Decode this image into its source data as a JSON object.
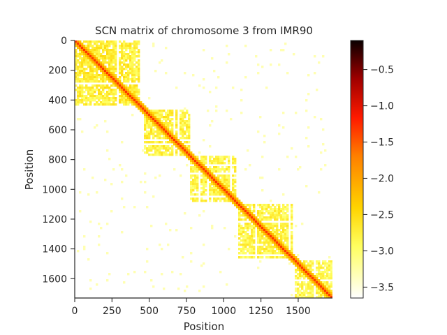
{
  "chart_data": {
    "type": "heatmap",
    "title": "SCN matrix of chromosome 3 from IMR90",
    "xlabel": "Position",
    "ylabel": "Position",
    "xlim": [
      0,
      1730
    ],
    "ylim": [
      1730,
      0
    ],
    "xticks": [
      {
        "value": 0,
        "label": "0"
      },
      {
        "value": 250,
        "label": "250"
      },
      {
        "value": 500,
        "label": "500"
      },
      {
        "value": 750,
        "label": "750"
      },
      {
        "value": 1000,
        "label": "1000"
      },
      {
        "value": 1250,
        "label": "1250"
      },
      {
        "value": 1500,
        "label": "1500"
      }
    ],
    "yticks": [
      {
        "value": 0,
        "label": "0"
      },
      {
        "value": 200,
        "label": "200"
      },
      {
        "value": 400,
        "label": "400"
      },
      {
        "value": 600,
        "label": "600"
      },
      {
        "value": 800,
        "label": "800"
      },
      {
        "value": 1000,
        "label": "1000"
      },
      {
        "value": 1200,
        "label": "1200"
      },
      {
        "value": 1400,
        "label": "1400"
      },
      {
        "value": 1600,
        "label": "1600"
      }
    ],
    "colorbar": {
      "colormap": "hot_r",
      "range": [
        -3.65,
        -0.1
      ],
      "ticks": [
        {
          "value": -0.5,
          "label": "−0.5"
        },
        {
          "value": -1.0,
          "label": "−1.0"
        },
        {
          "value": -1.5,
          "label": "−1.5"
        },
        {
          "value": -2.0,
          "label": "−2.0"
        },
        {
          "value": -2.5,
          "label": "−2.5"
        },
        {
          "value": -3.0,
          "label": "−3.0"
        },
        {
          "value": -3.5,
          "label": "−3.5"
        }
      ]
    },
    "domains": [
      {
        "start": 0,
        "end": 440,
        "level": -2.7
      },
      {
        "start": 460,
        "end": 780,
        "level": -2.75
      },
      {
        "start": 780,
        "end": 1080,
        "level": -2.8
      },
      {
        "start": 1100,
        "end": 1480,
        "level": -2.8
      },
      {
        "start": 1480,
        "end": 1730,
        "level": -2.85
      }
    ],
    "diagonal_level": -1.3,
    "grid": false,
    "legend": "none"
  }
}
